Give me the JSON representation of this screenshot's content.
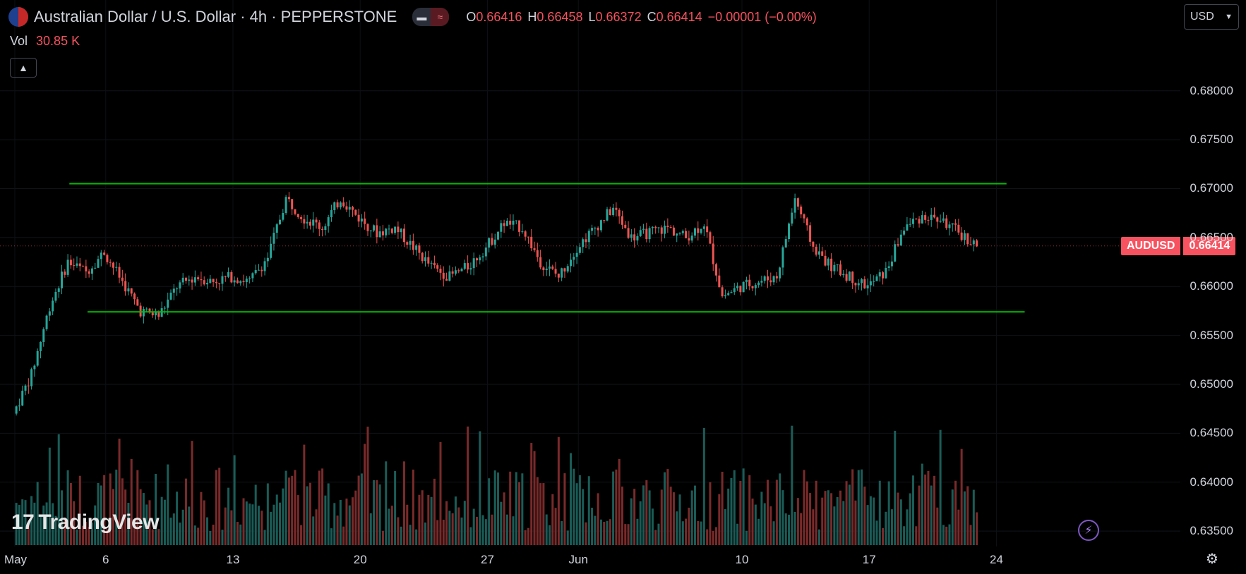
{
  "header": {
    "title": "Australian Dollar / U.S. Dollar · 4h · PEPPERSTONE",
    "pill_icons": [
      "minus-icon",
      "wave-icon"
    ],
    "ohlc": [
      {
        "label": "O",
        "value": "0.66416"
      },
      {
        "label": "H",
        "value": "0.66458"
      },
      {
        "label": "L",
        "value": "0.66372"
      },
      {
        "label": "C",
        "value": "0.66414"
      },
      {
        "label": "",
        "value": "−0.00001 (−0.00%)"
      }
    ]
  },
  "volume": {
    "label": "Vol",
    "value": "30.85 K"
  },
  "currency_select": {
    "value": "USD"
  },
  "price_tag": {
    "symbol": "AUDUSD",
    "price": "0.66414"
  },
  "logo": {
    "text": "TradingView"
  },
  "colors": {
    "up": "#26a69a",
    "down": "#ef5350",
    "up_vol": "#1a5c57",
    "down_vol": "#7a2a2a",
    "line": "#00c000",
    "accent": "#f7525f"
  },
  "chart_data": {
    "type": "candlestick",
    "title": "",
    "ylim": [
      0.6345,
      0.6825
    ],
    "y_ticks": [
      "0.68000",
      "0.67500",
      "0.67000",
      "0.66500",
      "0.66000",
      "0.65500",
      "0.65000",
      "0.64500",
      "0.64000",
      "0.63500"
    ],
    "x_ticks": [
      "May",
      "6",
      "13",
      "20",
      "27",
      "Jun",
      "10",
      "17",
      "24"
    ],
    "horizontal_lines": [
      {
        "name": "resistance",
        "value": 0.6705,
        "from": "May 4",
        "to": "Jun 23"
      },
      {
        "name": "support",
        "value": 0.6574,
        "from": "May 5",
        "to": "Jun 24"
      }
    ],
    "close_path": [
      {
        "date": "May 1",
        "close": 0.647
      },
      {
        "date": "May 2",
        "close": 0.651
      },
      {
        "date": "May 3",
        "close": 0.658
      },
      {
        "date": "May 4",
        "close": 0.6625
      },
      {
        "date": "May 5",
        "close": 0.6615
      },
      {
        "date": "May 6",
        "close": 0.6635
      },
      {
        "date": "May 7",
        "close": 0.6605
      },
      {
        "date": "May 8",
        "close": 0.6575
      },
      {
        "date": "May 9",
        "close": 0.657
      },
      {
        "date": "May 10",
        "close": 0.66
      },
      {
        "date": "May 11",
        "close": 0.661
      },
      {
        "date": "May 12",
        "close": 0.6605
      },
      {
        "date": "May 13",
        "close": 0.661
      },
      {
        "date": "May 14",
        "close": 0.6605
      },
      {
        "date": "May 15",
        "close": 0.663
      },
      {
        "date": "May 16",
        "close": 0.669
      },
      {
        "date": "May 17",
        "close": 0.667
      },
      {
        "date": "May 18",
        "close": 0.666
      },
      {
        "date": "May 19",
        "close": 0.669
      },
      {
        "date": "May 20",
        "close": 0.667
      },
      {
        "date": "May 21",
        "close": 0.6655
      },
      {
        "date": "May 22",
        "close": 0.666
      },
      {
        "date": "May 23",
        "close": 0.664
      },
      {
        "date": "May 24",
        "close": 0.662
      },
      {
        "date": "May 25",
        "close": 0.661
      },
      {
        "date": "May 26",
        "close": 0.662
      },
      {
        "date": "May 27",
        "close": 0.664
      },
      {
        "date": "May 28",
        "close": 0.6665
      },
      {
        "date": "May 29",
        "close": 0.666
      },
      {
        "date": "May 30",
        "close": 0.6625
      },
      {
        "date": "May 31",
        "close": 0.661
      },
      {
        "date": "Jun 1",
        "close": 0.664
      },
      {
        "date": "Jun 2",
        "close": 0.666
      },
      {
        "date": "Jun 3",
        "close": 0.668
      },
      {
        "date": "Jun 4",
        "close": 0.665
      },
      {
        "date": "Jun 5",
        "close": 0.6655
      },
      {
        "date": "Jun 6",
        "close": 0.666
      },
      {
        "date": "Jun 7",
        "close": 0.665
      },
      {
        "date": "Jun 8",
        "close": 0.6665
      },
      {
        "date": "Jun 9",
        "close": 0.659
      },
      {
        "date": "Jun 10",
        "close": 0.66
      },
      {
        "date": "Jun 11",
        "close": 0.6605
      },
      {
        "date": "Jun 12",
        "close": 0.661
      },
      {
        "date": "Jun 13",
        "close": 0.669
      },
      {
        "date": "Jun 14",
        "close": 0.664
      },
      {
        "date": "Jun 15",
        "close": 0.662
      },
      {
        "date": "Jun 16",
        "close": 0.661
      },
      {
        "date": "Jun 17",
        "close": 0.66
      },
      {
        "date": "Jun 18",
        "close": 0.6615
      },
      {
        "date": "Jun 19",
        "close": 0.666
      },
      {
        "date": "Jun 20",
        "close": 0.6672
      },
      {
        "date": "Jun 21",
        "close": 0.6668
      },
      {
        "date": "Jun 22",
        "close": 0.6655
      },
      {
        "date": "Jun 23",
        "close": 0.66414
      }
    ]
  }
}
